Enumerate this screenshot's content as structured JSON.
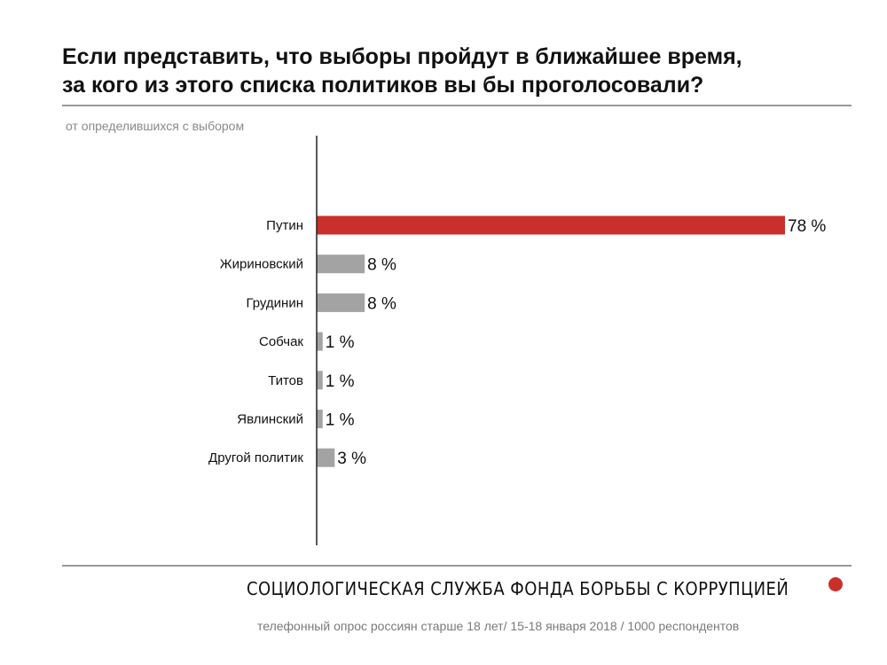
{
  "header": {
    "title_line1": "Если представить, что выборы пройдут в ближайшее время,",
    "title_line2": "за кого из этого списка политиков вы бы проголосовали?",
    "subtitle": "от определившихся с выбором"
  },
  "colors": {
    "highlight": "#c9302c",
    "bar": "#a3a3a3",
    "axis": "#222222"
  },
  "chart_data": {
    "type": "bar",
    "orientation": "horizontal",
    "categories": [
      "Путин",
      "Жириновский",
      "Грудинин",
      "Собчак",
      "Титов",
      "Явлинский",
      "Другой политик"
    ],
    "values": [
      78,
      8,
      8,
      1,
      1,
      1,
      3
    ],
    "value_suffix": " %",
    "highlight_index": 0,
    "xlim": [
      0,
      78
    ],
    "grid": false,
    "legend": "none"
  },
  "footer": {
    "organization": "СОЦИОЛОГИЧЕСКАЯ СЛУЖБА ФОНДА БОРЬБЫ С КОРРУПЦИЕЙ",
    "note": "телефонный опрос россиян старше 18 лет/ 15-18 января 2018 / 1000 респондентов"
  }
}
